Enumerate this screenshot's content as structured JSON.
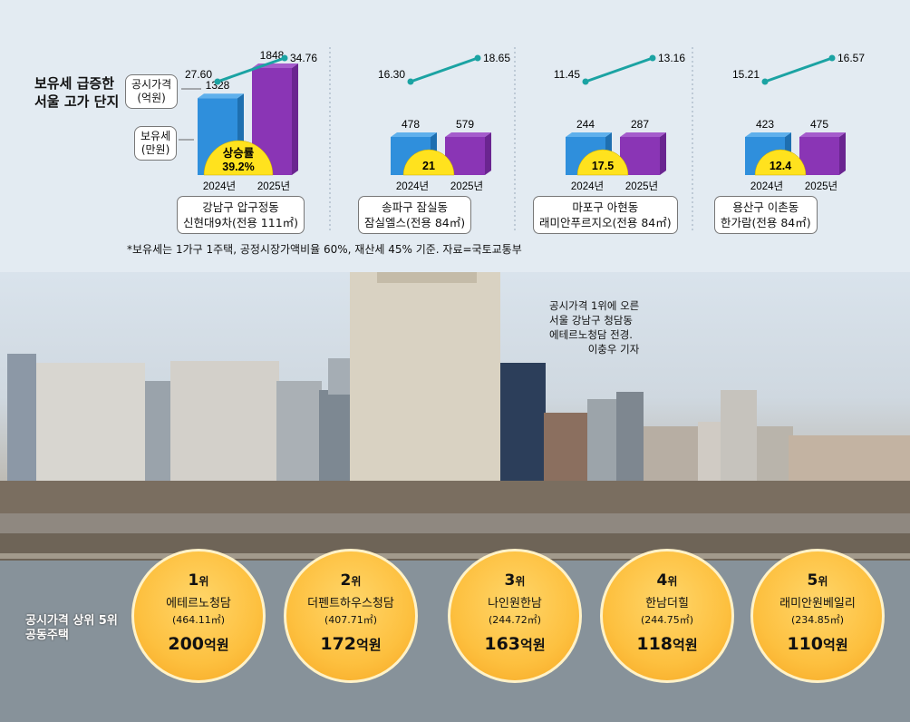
{
  "legend": {
    "title_line1": "보유세 급증한",
    "title_line2": "서울 고가 단지",
    "price_label_line1": "공시가격",
    "price_label_line2": "(억원)",
    "tax_label_line1": "보유세",
    "tax_label_line2": "(만원)"
  },
  "chart_data": [
    {
      "type": "bar",
      "district": "강남구 압구정동",
      "complex": "신현대9차(전용 111㎡)",
      "categories": [
        "2024년",
        "2025년"
      ],
      "tax_values": [
        1328,
        1848
      ],
      "tax_labels": [
        "1328",
        "1848"
      ],
      "price_values": [
        27.6,
        34.76
      ],
      "price_labels": [
        "27.60",
        "34.76"
      ],
      "increase_label": "상승률",
      "increase": "39.2%",
      "increase_value": 39.2
    },
    {
      "type": "bar",
      "district": "송파구 잠실동",
      "complex": "잠실엘스(전용 84㎡)",
      "categories": [
        "2024년",
        "2025년"
      ],
      "tax_values": [
        478,
        579
      ],
      "tax_labels": [
        "478",
        "579"
      ],
      "price_values": [
        16.3,
        18.65
      ],
      "price_labels": [
        "16.30",
        "18.65"
      ],
      "increase": "21",
      "increase_value": 21
    },
    {
      "type": "bar",
      "district": "마포구 아현동",
      "complex": "래미안푸르지오(전용 84㎡)",
      "categories": [
        "2024년",
        "2025년"
      ],
      "tax_values": [
        244,
        287
      ],
      "tax_labels": [
        "244",
        "287"
      ],
      "price_values": [
        11.45,
        13.16
      ],
      "price_labels": [
        "11.45",
        "13.16"
      ],
      "increase": "17.5",
      "increase_value": 17.5
    },
    {
      "type": "bar",
      "district": "용산구 이촌동",
      "complex": "한가람(전용 84㎡)",
      "categories": [
        "2024년",
        "2025년"
      ],
      "tax_values": [
        423,
        475
      ],
      "tax_labels": [
        "423",
        "475"
      ],
      "price_values": [
        15.21,
        16.57
      ],
      "price_labels": [
        "15.21",
        "16.57"
      ],
      "increase": "12.4",
      "increase_value": 12.4
    }
  ],
  "note": "*보유세는 1가구 1주택, 공정시장가액비율 60%, 재산세 45% 기준. 자료=국토교통부",
  "caption": {
    "line1": "공시가격 1위에 오른",
    "line2": "서울 강남구 청담동",
    "line3": "에테르노청담 전경.",
    "credit": "이충우 기자"
  },
  "top5": {
    "label_line1": "공시가격 상위 5위",
    "label_line2": "공동주택",
    "rank_suffix": "위",
    "price_unit": "억원",
    "items": [
      {
        "rank": "1",
        "name": "에테르노청담",
        "area": "(464.11㎡)",
        "price": "200"
      },
      {
        "rank": "2",
        "name": "더펜트하우스청담",
        "area": "(407.71㎡)",
        "price": "172"
      },
      {
        "rank": "3",
        "name": "나인원한남",
        "area": "(244.72㎡)",
        "price": "163"
      },
      {
        "rank": "4",
        "name": "한남더힐",
        "area": "(244.75㎡)",
        "price": "118"
      },
      {
        "rank": "5",
        "name": "래미안원베일리",
        "area": "(234.85㎡)",
        "price": "110"
      }
    ]
  },
  "colors": {
    "bar2024": "#2f8fdc",
    "bar2025": "#8a35b5",
    "line": "#1ba3a3",
    "badge": "#ffe21e"
  }
}
